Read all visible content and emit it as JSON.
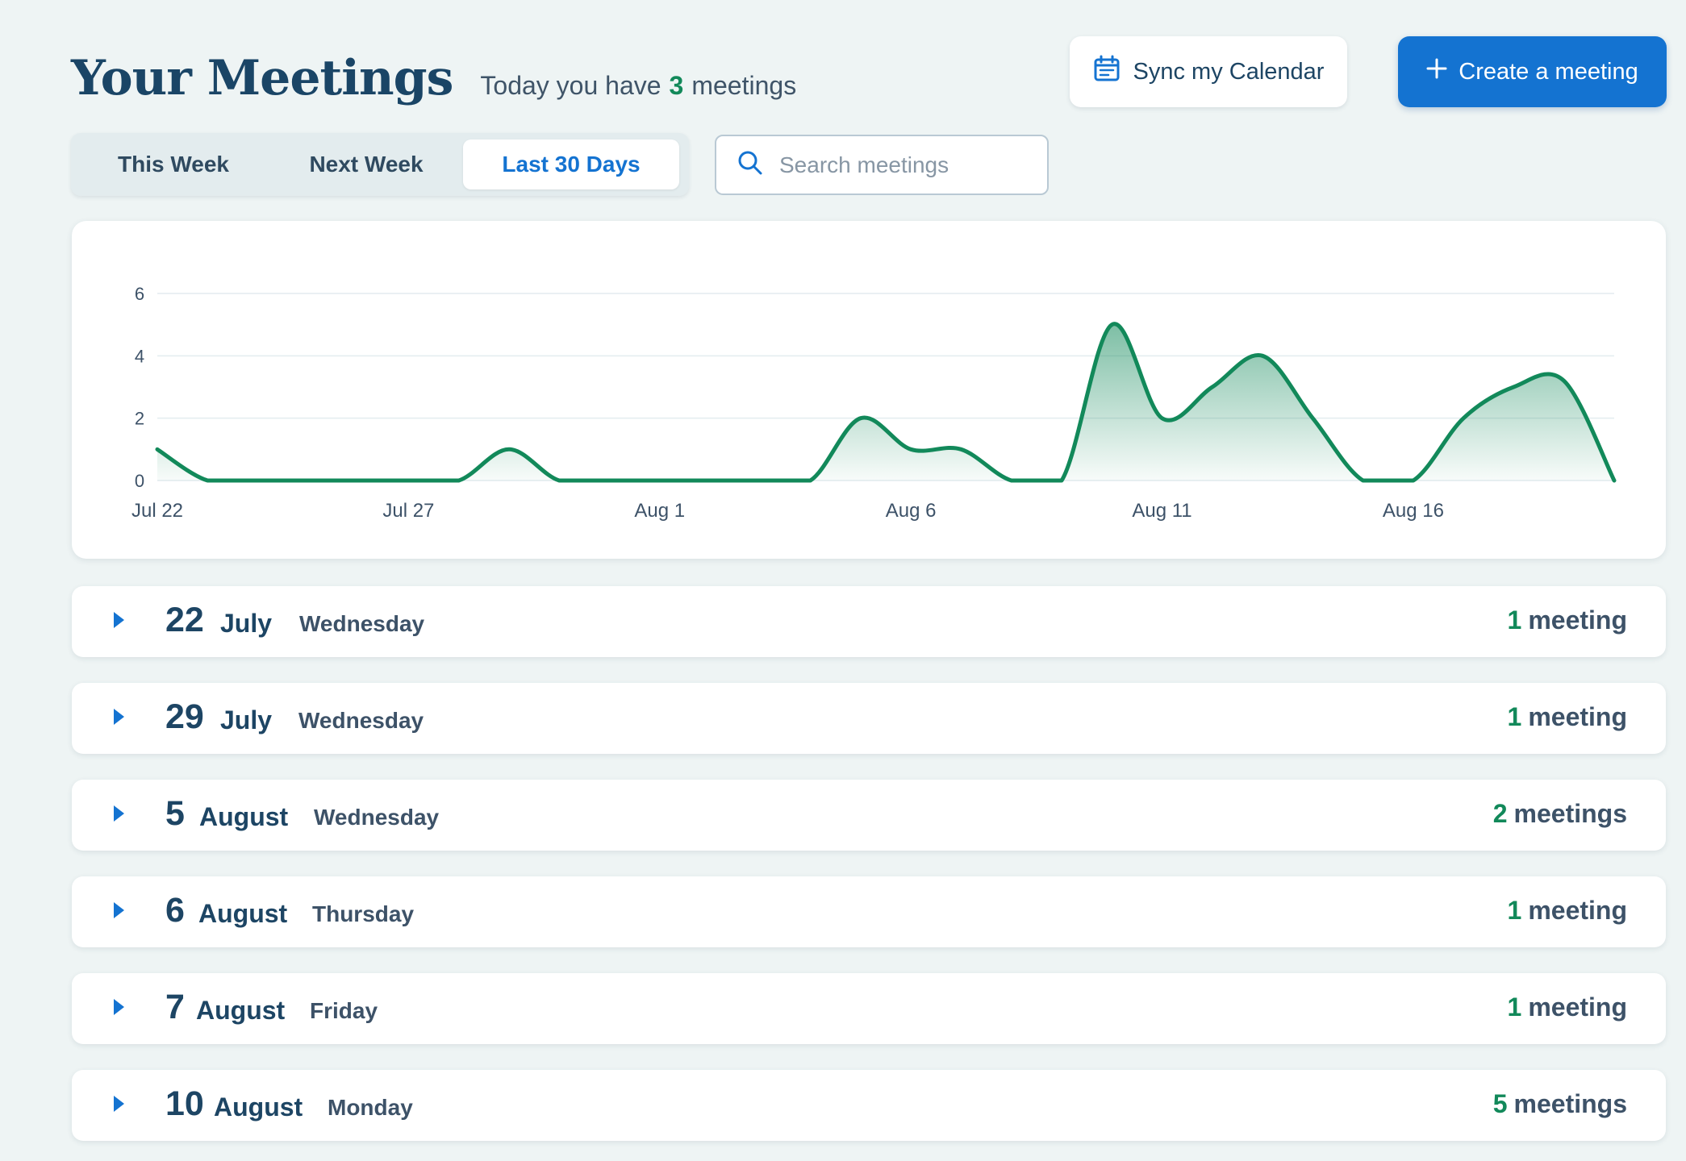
{
  "header": {
    "title": "Your Meetings",
    "today_prefix": "Today you have",
    "today_count": "3",
    "today_suffix": "meetings"
  },
  "actions": {
    "sync_label": "Sync my Calendar",
    "sync_icon": "calendar-icon",
    "create_label": "Create a meeting",
    "create_icon": "plus-icon"
  },
  "tabs": [
    {
      "label": "This Week",
      "active": false
    },
    {
      "label": "Next Week",
      "active": false
    },
    {
      "label": "Last 30 Days",
      "active": true
    }
  ],
  "search": {
    "placeholder": "Search meetings",
    "value": "",
    "icon": "search-icon"
  },
  "chart_data": {
    "type": "area",
    "title": "",
    "xlabel": "",
    "ylabel": "",
    "x": [
      "Jul 22",
      "Jul 23",
      "Jul 24",
      "Jul 25",
      "Jul 26",
      "Jul 27",
      "Jul 28",
      "Jul 29",
      "Jul 30",
      "Jul 31",
      "Aug 1",
      "Aug 2",
      "Aug 3",
      "Aug 4",
      "Aug 5",
      "Aug 6",
      "Aug 7",
      "Aug 8",
      "Aug 9",
      "Aug 10",
      "Aug 11",
      "Aug 12",
      "Aug 13",
      "Aug 14",
      "Aug 15",
      "Aug 16",
      "Aug 17",
      "Aug 18",
      "Aug 19",
      "Aug 20"
    ],
    "xticks": [
      "Jul 22",
      "Jul 27",
      "Aug 1",
      "Aug 6",
      "Aug 11",
      "Aug 16"
    ],
    "values": [
      1,
      0,
      0,
      0,
      0,
      0,
      0,
      1,
      0,
      0,
      0,
      0,
      0,
      0,
      2,
      1,
      1,
      0,
      0,
      5,
      2,
      3,
      4,
      2,
      0,
      0,
      2,
      3,
      3.2,
      0
    ],
    "yticks": [
      0,
      2,
      4,
      6
    ],
    "ylim": [
      0,
      6
    ],
    "grid": true,
    "colors": {
      "line": "#12895a",
      "fill": "#12895a"
    }
  },
  "days": [
    {
      "day": "22",
      "month": "July",
      "weekday": "Wednesday",
      "count": "1",
      "unit": "meeting"
    },
    {
      "day": "29",
      "month": "July",
      "weekday": "Wednesday",
      "count": "1",
      "unit": "meeting"
    },
    {
      "day": "5",
      "month": "August",
      "weekday": "Wednesday",
      "count": "2",
      "unit": "meetings"
    },
    {
      "day": "6",
      "month": "August",
      "weekday": "Thursday",
      "count": "1",
      "unit": "meeting"
    },
    {
      "day": "7",
      "month": "August",
      "weekday": "Friday",
      "count": "1",
      "unit": "meeting"
    },
    {
      "day": "10",
      "month": "August",
      "weekday": "Monday",
      "count": "5",
      "unit": "meetings"
    }
  ],
  "colors": {
    "accent_blue": "#1473d1",
    "success_green": "#12895a",
    "title_navy": "#1a4566",
    "background": "#eef4f4"
  }
}
